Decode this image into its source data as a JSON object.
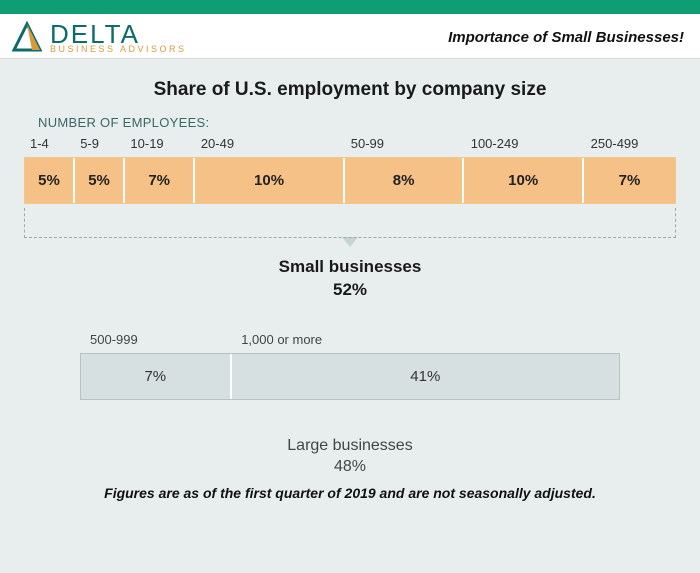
{
  "brand": {
    "name": "DELTA",
    "sub": "BUSINESS ADVISORS",
    "color_main": "#0d6b6b",
    "color_accent": "#d99a3a"
  },
  "headline": "Importance of Small Businesses!",
  "chart": {
    "title": "Share of U.S. employment by company size",
    "field_label": "NUMBER OF EMPLOYEES:",
    "small": {
      "type": "segmented-bar",
      "segments": [
        {
          "range": "1-4",
          "value": "5%",
          "width_pct": 7.7
        },
        {
          "range": "5-9",
          "value": "5%",
          "width_pct": 7.7
        },
        {
          "range": "10-19",
          "value": "7%",
          "width_pct": 10.8
        },
        {
          "range": "20-49",
          "value": "10%",
          "width_pct": 23.0
        },
        {
          "range": "50-99",
          "value": "8%",
          "width_pct": 18.4
        },
        {
          "range": "100-249",
          "value": "10%",
          "width_pct": 18.4
        },
        {
          "range": "250-499",
          "value": "7%",
          "width_pct": 14.0
        }
      ],
      "bar_color": "#f6c186",
      "group_title": "Small businesses",
      "group_value": "52%"
    },
    "large": {
      "type": "segmented-bar",
      "segments": [
        {
          "range": "500-999",
          "value": "7%",
          "width_pct": 28.0
        },
        {
          "range": "1,000 or more",
          "value": "41%",
          "width_pct": 72.0
        }
      ],
      "bar_color": "#d6e0e0",
      "group_title": "Large businesses",
      "group_value": "48%"
    },
    "footnote": "Figures are as of the first quarter of 2019 and are not seasonally adjusted."
  },
  "colors": {
    "top_bar": "#0f9d74",
    "background": "#e8eeee",
    "text": "#1a1a1a"
  }
}
